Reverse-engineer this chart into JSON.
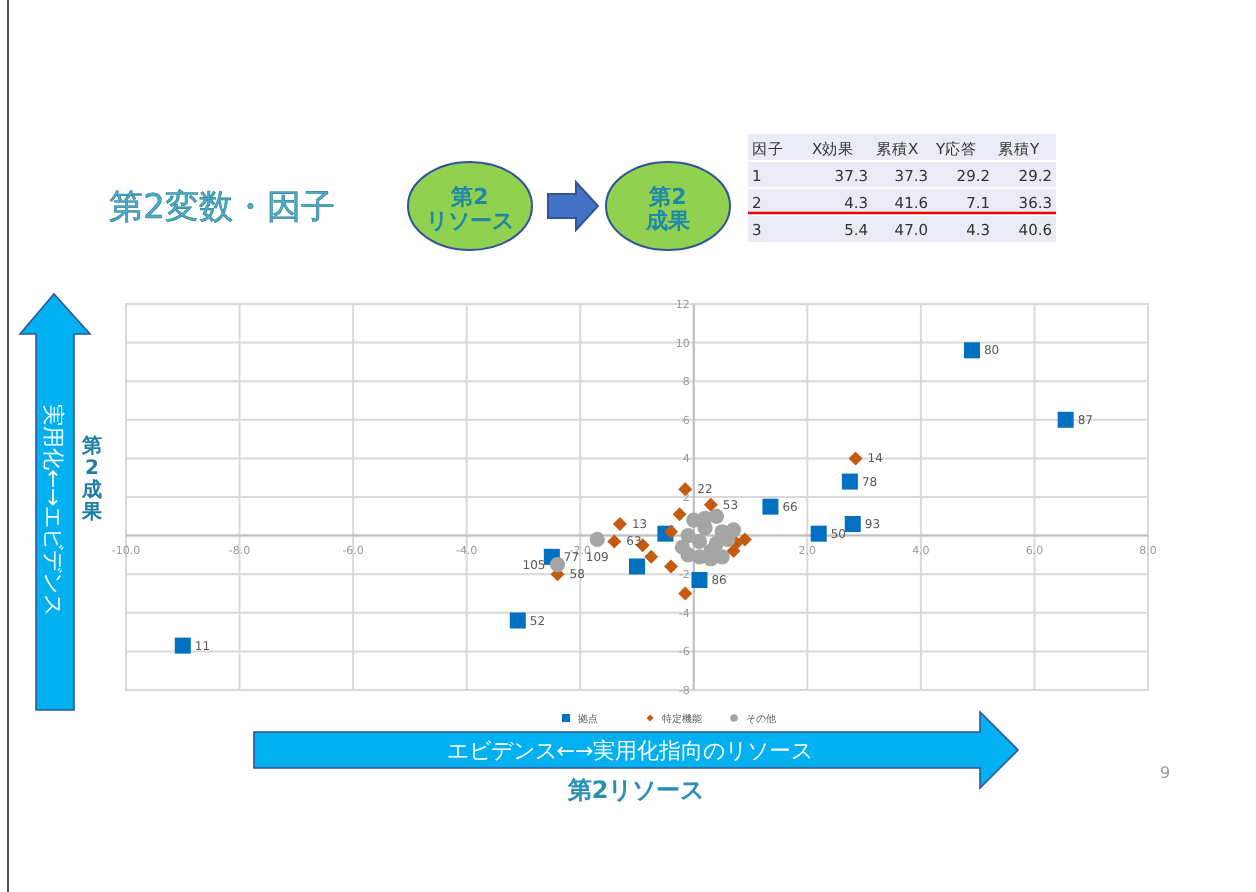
{
  "chart_data": [
    {
      "type": "other",
      "annotations": [
        "第2\nリソース",
        "第2\n成果",
        "因子",
        "X効果",
        "累積X",
        "Y応答",
        "累積Y",
        "1",
        "37.3",
        "37.3",
        "29.2",
        "29.2",
        "2",
        "4.3",
        "41.6",
        "7.1",
        "36.3",
        "3",
        "5.4",
        "47.0",
        "4.3",
        "40.6"
      ]
    },
    {
      "type": "scatter",
      "title": "第2変数・因子",
      "xlabel": "第2リソース",
      "ylabel": "第2成果",
      "xlim": [
        -10,
        8
      ],
      "ylim": [
        -8,
        12
      ],
      "xticks": [
        {
          "value": -10,
          "label": "-10.0"
        },
        {
          "value": -8,
          "label": "-8.0"
        },
        {
          "value": -6,
          "label": "-6.0"
        },
        {
          "value": -4,
          "label": "-4.0"
        },
        {
          "value": -2,
          "label": "-2.0"
        },
        {
          "value": 0,
          "label": null
        },
        {
          "value": 2,
          "label": "2.0"
        },
        {
          "value": 4,
          "label": "4.0"
        },
        {
          "value": 6,
          "label": "6.0"
        },
        {
          "value": 8,
          "label": "8.0"
        }
      ],
      "yticks": [
        -8,
        -6,
        -4,
        -2,
        {
          "value": 0,
          "label": null
        },
        2,
        4,
        6,
        8,
        10,
        12
      ],
      "grid": true,
      "legend": "bottom",
      "series": [
        {
          "name": "拠点",
          "color": "#0070c0",
          "marker": "square",
          "x": [
            -9.0,
            -3.1,
            -2.5,
            4.9,
            6.55,
            2.75,
            2.8,
            2.2,
            1.35,
            0.1,
            -1.0,
            -0.5
          ],
          "values": [
            -5.7,
            -4.4,
            -1.1,
            9.6,
            6.0,
            2.8,
            0.6,
            0.1,
            1.5,
            -2.3,
            -1.6,
            0.1
          ]
        },
        {
          "name": "特定機能",
          "color": "#c55a11",
          "marker": "diamond",
          "x": [
            2.85,
            -1.3,
            -1.4,
            -2.4,
            -0.15,
            0.3,
            -0.4,
            -0.15,
            -0.75,
            -0.9,
            0.75,
            0.9,
            0.7,
            -0.25,
            -0.4
          ],
          "values": [
            4.0,
            0.6,
            -0.3,
            -2.0,
            2.4,
            1.6,
            -1.6,
            -3.0,
            -1.1,
            -0.5,
            -0.4,
            -0.2,
            -0.8,
            1.1,
            0.2
          ]
        },
        {
          "name": "その他",
          "color": "#a5a5a5",
          "marker": "circle",
          "x": [
            -1.7,
            -2.4,
            -0.1,
            0.1,
            0.5,
            0.2,
            -0.2,
            0.4,
            0.6,
            0.1,
            0.3,
            0.5,
            -0.1,
            0.2,
            0.4,
            0.7,
            0.0,
            0.3
          ],
          "values": [
            -0.2,
            -1.5,
            0.0,
            -0.3,
            0.2,
            0.4,
            -0.6,
            -0.4,
            -0.2,
            -1.1,
            -1.2,
            -1.1,
            -1.0,
            0.9,
            1.0,
            0.3,
            0.8,
            -0.8
          ]
        }
      ],
      "annotations": [
        "エビデンス←→実用化指向のリソース",
        "実用化←→エビデンス",
        "9",
        {
          "text": "11",
          "x": -9.0,
          "y": -5.7
        },
        {
          "text": "52",
          "x": -3.1,
          "y": -4.4
        },
        {
          "text": "77",
          "x": -2.5,
          "y": -1.1
        },
        {
          "text": "80",
          "x": 4.9,
          "y": 9.6
        },
        {
          "text": "87",
          "x": 6.55,
          "y": 6.0
        },
        {
          "text": "78",
          "x": 2.75,
          "y": 2.8
        },
        {
          "text": "93",
          "x": 2.8,
          "y": 0.6
        },
        {
          "text": "50",
          "x": 2.2,
          "y": 0.1
        },
        {
          "text": "66",
          "x": 1.35,
          "y": 1.5
        },
        {
          "text": "86",
          "x": 0.1,
          "y": -2.3
        },
        {
          "text": "14",
          "x": 2.85,
          "y": 4.0
        },
        {
          "text": "13",
          "x": -1.3,
          "y": 0.6
        },
        {
          "text": "63",
          "x": -1.4,
          "y": -0.3
        },
        {
          "text": "58",
          "x": -2.4,
          "y": -2.0
        },
        {
          "text": "22",
          "x": -0.15,
          "y": 2.4
        },
        {
          "text": "53",
          "x": 0.3,
          "y": 1.6
        },
        {
          "text": "109",
          "x": -1.7,
          "y": -0.2
        },
        {
          "text": "105",
          "x": -2.4,
          "y": -1.5
        }
      ]
    }
  ]
}
